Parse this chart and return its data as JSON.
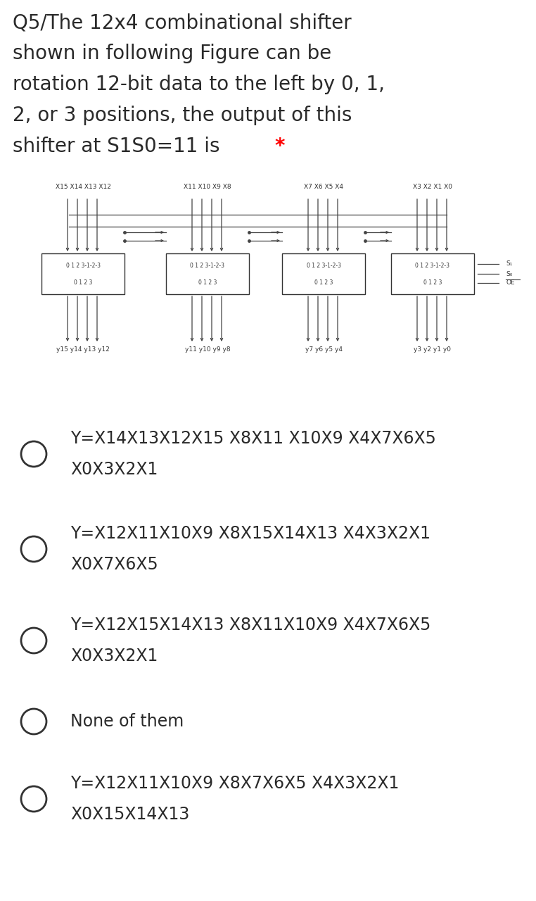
{
  "title_lines": [
    "Q5/The 12x4 combinational shifter",
    "shown in following Figure can be",
    "rotation 12-bit data to the left by 0, 1,",
    "2, or 3 positions, the output of this",
    "shifter at S1S0=11 is "
  ],
  "title_star": "*",
  "bg_color": "#ffffff",
  "text_color": "#2a2a2a",
  "star_color": "#ff0000",
  "title_fontsize": 20,
  "title_fontweight": "normal",
  "options": [
    {
      "line1": "Y=X14X13X12X15 X8X11 X10X9 X4X7X6X5",
      "line2": "X0X3X2X1"
    },
    {
      "line1": "Y=X12X11X10X9 X8X15X14X13 X4X3X2X1",
      "line2": "X0X7X6X5"
    },
    {
      "line1": "Y=X12X15X14X13 X8X11X10X9 X4X7X6X5",
      "line2": "X0X3X2X1"
    },
    {
      "line1": "None of them",
      "line2": ""
    },
    {
      "line1": "Y=X12X11X10X9 X8X7X6X5 X4X3X2X1",
      "line2": "X0X15X14X13"
    }
  ],
  "option_fontsize": 17,
  "diagram": {
    "input_labels_top": [
      "X15 X14 X13 X12",
      "X11 X10 X9 X8",
      "X7 X6 X5 X4",
      "X3 X2 X1 X0"
    ],
    "output_labels": [
      "y15 y14 y13 y12",
      "y11 y10 y9 y8",
      "y7 y6 y5 y4",
      "y3 y2 y1 y0"
    ]
  }
}
